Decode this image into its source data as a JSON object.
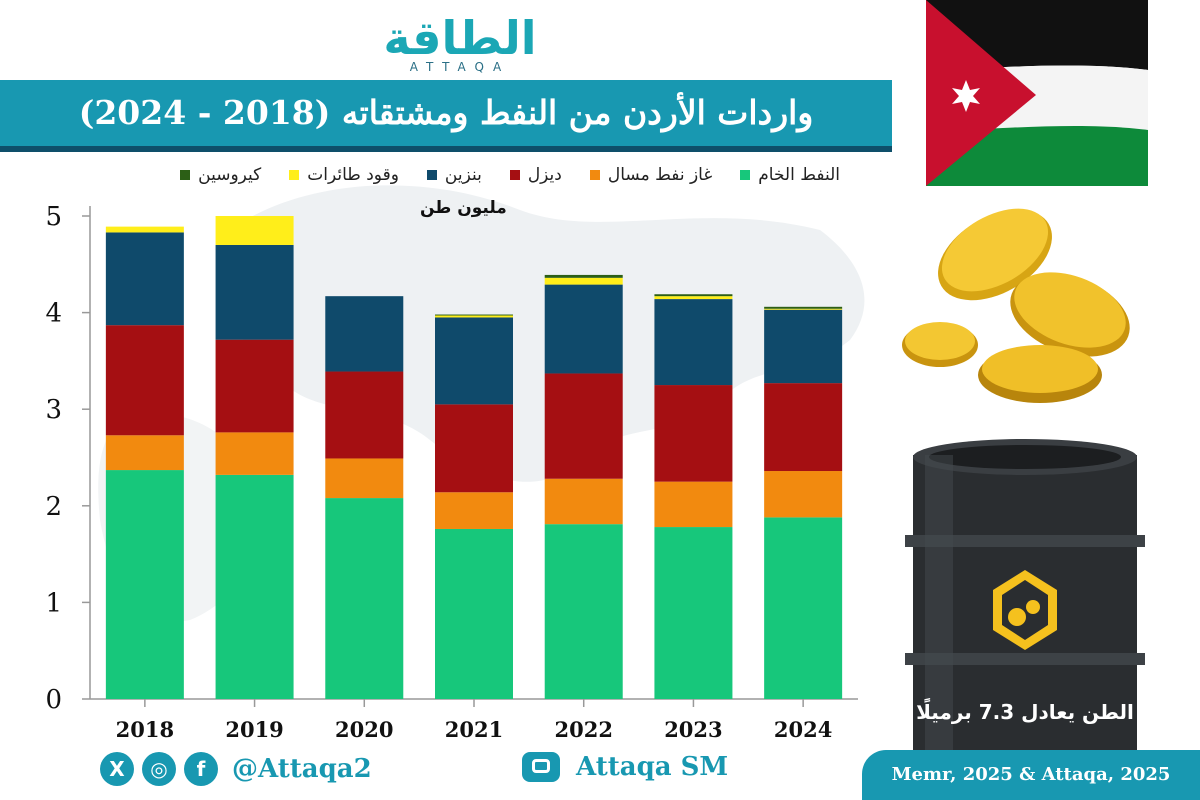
{
  "header": {
    "logo_ar": "الطاقة",
    "logo_en": "ATTAQA",
    "title": "واردات الأردن من النفط ومشتقاته (2018 - 2024)"
  },
  "colors": {
    "title_bar": "#1898b1",
    "title_bar_border": "#0e4f6a",
    "crude": "#17c77b",
    "lpg": "#f28a0f",
    "diesel": "#a50f12",
    "gasoline": "#0f4a6b",
    "jet_fuel": "#ffee1a",
    "kerosene": "#2c5f16"
  },
  "legend": [
    {
      "label": "النفط الخام",
      "color": "#17c77b"
    },
    {
      "label": "غاز نفط مسال",
      "color": "#f28a0f"
    },
    {
      "label": "ديزل",
      "color": "#a50f12"
    },
    {
      "label": "بنزين",
      "color": "#0f4a6b"
    },
    {
      "label": "وقود طائرات",
      "color": "#ffee1a"
    },
    {
      "label": "كيروسين",
      "color": "#2c5f16"
    }
  ],
  "chart_data": {
    "type": "bar",
    "stacked": true,
    "categories": [
      "2018",
      "2019",
      "2020",
      "2021",
      "2022",
      "2023",
      "2024"
    ],
    "ylabel": "مليون طن",
    "ylim": [
      0,
      5
    ],
    "yticks": [
      0,
      1,
      2,
      3,
      4,
      5
    ],
    "grid": false,
    "series": [
      {
        "name": "النفط الخام",
        "color": "#17c77b",
        "values": [
          2.37,
          2.32,
          2.08,
          1.76,
          1.81,
          1.78,
          1.88
        ]
      },
      {
        "name": "غاز نفط مسال",
        "color": "#f28a0f",
        "values": [
          0.36,
          0.44,
          0.41,
          0.38,
          0.47,
          0.47,
          0.48
        ]
      },
      {
        "name": "ديزل",
        "color": "#a50f12",
        "values": [
          1.14,
          0.96,
          0.9,
          0.91,
          1.09,
          1.0,
          0.91
        ]
      },
      {
        "name": "بنزين",
        "color": "#0f4a6b",
        "values": [
          0.96,
          0.98,
          0.78,
          0.9,
          0.92,
          0.89,
          0.76
        ]
      },
      {
        "name": "وقود طائرات",
        "color": "#ffee1a",
        "values": [
          0.06,
          0.3,
          0.0,
          0.02,
          0.07,
          0.03,
          0.01
        ]
      },
      {
        "name": "كيروسين",
        "color": "#2c5f16",
        "values": [
          0.0,
          0.0,
          0.0,
          0.01,
          0.03,
          0.02,
          0.02
        ]
      }
    ]
  },
  "barrel_note": "الطن يعادل 7.3 برميلًا",
  "footer": {
    "social_x": "X",
    "social_ig": "◎",
    "social_fb": "f",
    "handle": "@Attaqa2",
    "channel": "Attaqa SM",
    "source": "Memr, 2025 & Attaqa, 2025"
  }
}
